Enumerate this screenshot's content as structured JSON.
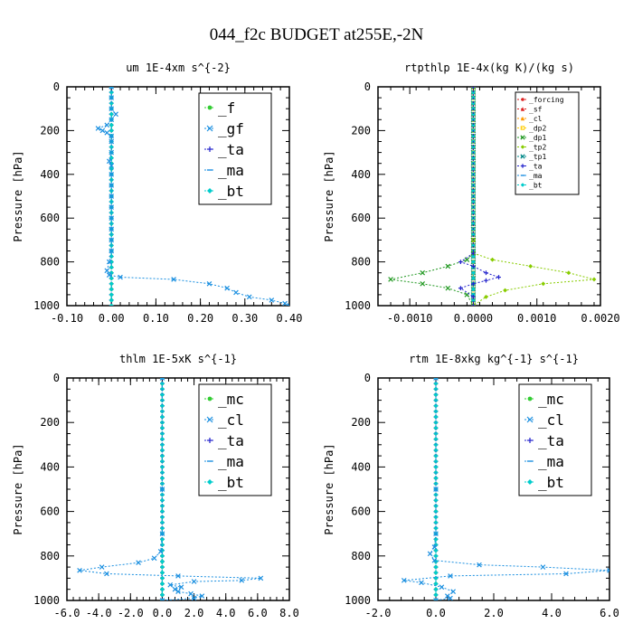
{
  "figure_title": "044_f2c  BUDGET at255E,-2N",
  "colors": {
    "green": "#33cc33",
    "blue": "#1a8fe0",
    "darkblue": "#2222cc",
    "red": "#dd2222",
    "orange": "#ff9900",
    "yellow": "#ffcc00",
    "darkgreen": "#229922",
    "olive": "#88cc00",
    "teal": "#008888",
    "cyan": "#00cccc"
  },
  "chart_data": [
    {
      "type": "line",
      "title": "um  1E-4xm s^{-2}",
      "ylabel": "Pressure [hPa]",
      "ylim": [
        1000,
        0
      ],
      "xlim": [
        -0.1,
        0.4
      ],
      "xticks": [
        -0.1,
        0.0,
        0.1,
        0.2,
        0.3,
        0.4
      ],
      "xtick_labels": [
        "-0.10",
        "0.00",
        "0.10",
        "0.20",
        "0.30",
        "0.40"
      ],
      "yticks": [
        0,
        200,
        400,
        600,
        800,
        1000
      ],
      "legend": {
        "placement": "top-right",
        "size": "big"
      },
      "series": [
        {
          "name": "_f",
          "color": "#33cc33",
          "marker": "circle",
          "gen": "zero"
        },
        {
          "name": "_gf",
          "color": "#1a8fe0",
          "marker": "x",
          "points": [
            [
              0,
              0
            ],
            [
              0,
              50
            ],
            [
              0,
              100
            ],
            [
              0.01,
              125
            ],
            [
              0,
              150
            ],
            [
              -0.01,
              175
            ],
            [
              -0.03,
              190
            ],
            [
              -0.02,
              200
            ],
            [
              -0.01,
              210
            ],
            [
              0,
              225
            ],
            [
              0,
              250
            ],
            [
              0,
              300
            ],
            [
              -0.005,
              340
            ],
            [
              0,
              360
            ],
            [
              0,
              400
            ],
            [
              0,
              450
            ],
            [
              0,
              500
            ],
            [
              0,
              550
            ],
            [
              0,
              600
            ],
            [
              0,
              650
            ],
            [
              0,
              700
            ],
            [
              0,
              750
            ],
            [
              -0.005,
              800
            ],
            [
              -0.01,
              840
            ],
            [
              -0.005,
              860
            ],
            [
              0.02,
              870
            ],
            [
              0.14,
              880
            ],
            [
              0.22,
              900
            ],
            [
              0.26,
              920
            ],
            [
              0.28,
              940
            ],
            [
              0.31,
              960
            ],
            [
              0.36,
              975
            ],
            [
              0.39,
              990
            ],
            [
              0.4,
              1000
            ]
          ]
        },
        {
          "name": "_ta",
          "color": "#2222cc",
          "marker": "plus",
          "gen": "zero"
        },
        {
          "name": "_ma",
          "color": "#1a8fe0",
          "marker": "dash",
          "gen": "zero"
        },
        {
          "name": "_bt",
          "color": "#00cccc",
          "marker": "diamond",
          "gen": "zero"
        }
      ]
    },
    {
      "type": "line",
      "title": "rtpthlp  1E-4x(kg K)/(kg s)",
      "ylabel": "Pressure [hPa]",
      "ylim": [
        1000,
        0
      ],
      "xlim": [
        -0.0015,
        0.002
      ],
      "xticks": [
        -0.001,
        0.0,
        0.001,
        0.002
      ],
      "xtick_labels": [
        "-0.0010",
        "0.0000",
        "0.0010",
        "0.0020"
      ],
      "yticks": [
        0,
        200,
        400,
        600,
        800,
        1000
      ],
      "legend": {
        "placement": "top-right",
        "size": "small"
      },
      "series": [
        {
          "name": "_forcing",
          "color": "#dd2222",
          "marker": "circle",
          "gen": "zero"
        },
        {
          "name": "_sf",
          "color": "#dd2222",
          "marker": "triangle",
          "gen": "zero"
        },
        {
          "name": "_cl",
          "color": "#ff9900",
          "marker": "triangle",
          "gen": "zero"
        },
        {
          "name": "_dp2",
          "color": "#ffcc00",
          "marker": "square",
          "gen": "zero"
        },
        {
          "name": "_dp1",
          "color": "#229922",
          "marker": "x",
          "points": [
            [
              0,
              0
            ],
            [
              0,
              700
            ],
            [
              0,
              760
            ],
            [
              -0.0001,
              790
            ],
            [
              -0.0004,
              820
            ],
            [
              -0.0008,
              850
            ],
            [
              -0.0013,
              880
            ],
            [
              -0.0008,
              900
            ],
            [
              -0.0004,
              920
            ],
            [
              -0.0001,
              950
            ],
            [
              0,
              1000
            ]
          ]
        },
        {
          "name": "_tp2",
          "color": "#88cc00",
          "marker": "diamond",
          "points": [
            [
              0,
              0
            ],
            [
              0,
              700
            ],
            [
              0,
              760
            ],
            [
              0.0003,
              790
            ],
            [
              0.0009,
              820
            ],
            [
              0.0015,
              850
            ],
            [
              0.0019,
              880
            ],
            [
              0.0011,
              900
            ],
            [
              0.0005,
              930
            ],
            [
              0.0002,
              960
            ],
            [
              0,
              1000
            ]
          ]
        },
        {
          "name": "_tp1",
          "color": "#008888",
          "marker": "x",
          "gen": "zero"
        },
        {
          "name": "_ta",
          "color": "#2222cc",
          "marker": "plus",
          "points": [
            [
              0,
              0
            ],
            [
              0,
              760
            ],
            [
              -0.0002,
              800
            ],
            [
              0,
              820
            ],
            [
              0.0002,
              850
            ],
            [
              0.0004,
              870
            ],
            [
              0.0002,
              885
            ],
            [
              0,
              900
            ],
            [
              -0.0002,
              920
            ],
            [
              0,
              960
            ],
            [
              0,
              1000
            ]
          ]
        },
        {
          "name": "_ma",
          "color": "#1a8fe0",
          "marker": "dash",
          "gen": "zero"
        },
        {
          "name": "_bt",
          "color": "#00cccc",
          "marker": "diamond",
          "gen": "zero"
        }
      ]
    },
    {
      "type": "line",
      "title": "thlm  1E-5xK s^{-1}",
      "ylabel": "Pressure [hPa]",
      "ylim": [
        1000,
        0
      ],
      "xlim": [
        -6,
        8
      ],
      "xticks": [
        -6,
        -4,
        -2,
        0,
        2,
        4,
        6,
        8
      ],
      "xtick_labels": [
        "-6.0",
        "-4.0",
        "-2.0",
        "0.0",
        "2.0",
        "4.0",
        "6.0",
        "8.0"
      ],
      "yticks": [
        0,
        200,
        400,
        600,
        800,
        1000
      ],
      "legend": {
        "placement": "top-right",
        "size": "big"
      },
      "series": [
        {
          "name": "_mc",
          "color": "#33cc33",
          "marker": "circle",
          "gen": "zero"
        },
        {
          "name": "_cl",
          "color": "#1a8fe0",
          "marker": "x",
          "points": [
            [
              0,
              0
            ],
            [
              0,
              500
            ],
            [
              0,
              700
            ],
            [
              -0.1,
              780
            ],
            [
              -0.5,
              810
            ],
            [
              -1.5,
              830
            ],
            [
              -3.8,
              850
            ],
            [
              -5.2,
              865
            ],
            [
              -3.5,
              880
            ],
            [
              1,
              890
            ],
            [
              6.2,
              900
            ],
            [
              5,
              910
            ],
            [
              2,
              915
            ],
            [
              0.5,
              930
            ],
            [
              1.2,
              940
            ],
            [
              0.8,
              950
            ],
            [
              1,
              960
            ],
            [
              1.8,
              970
            ],
            [
              2.5,
              980
            ],
            [
              2,
              990
            ],
            [
              0,
              1000
            ]
          ]
        },
        {
          "name": "_ta",
          "color": "#2222cc",
          "marker": "plus",
          "gen": "zero"
        },
        {
          "name": "_ma",
          "color": "#1a8fe0",
          "marker": "dash",
          "gen": "zero"
        },
        {
          "name": "_bt",
          "color": "#00cccc",
          "marker": "diamond",
          "gen": "zero"
        }
      ]
    },
    {
      "type": "line",
      "title": "rtm  1E-8xkg kg^{-1} s^{-1}",
      "ylabel": "Pressure [hPa]",
      "ylim": [
        1000,
        0
      ],
      "xlim": [
        -2,
        6
      ],
      "xticks": [
        -2,
        0,
        2,
        4,
        6
      ],
      "xtick_labels": [
        "-2.0",
        "0.0",
        "2.0",
        "4.0",
        "6.0"
      ],
      "yticks": [
        0,
        200,
        400,
        600,
        800,
        1000
      ],
      "legend": {
        "placement": "top-right",
        "size": "big"
      },
      "series": [
        {
          "name": "_mc",
          "color": "#33cc33",
          "marker": "circle",
          "gen": "zero"
        },
        {
          "name": "_cl",
          "color": "#1a8fe0",
          "marker": "x",
          "points": [
            [
              0,
              0
            ],
            [
              0,
              500
            ],
            [
              0,
              700
            ],
            [
              -0.05,
              760
            ],
            [
              -0.2,
              790
            ],
            [
              -0.05,
              820
            ],
            [
              1.5,
              840
            ],
            [
              3.7,
              850
            ],
            [
              6,
              865
            ],
            [
              4.5,
              880
            ],
            [
              0.5,
              890
            ],
            [
              -1.1,
              910
            ],
            [
              -0.5,
              920
            ],
            [
              0.2,
              940
            ],
            [
              0.6,
              960
            ],
            [
              0.4,
              980
            ],
            [
              0.5,
              990
            ],
            [
              0,
              1000
            ]
          ]
        },
        {
          "name": "_ta",
          "color": "#2222cc",
          "marker": "plus",
          "gen": "zero"
        },
        {
          "name": "_ma",
          "color": "#1a8fe0",
          "marker": "dash",
          "gen": "zero"
        },
        {
          "name": "_bt",
          "color": "#00cccc",
          "marker": "diamond",
          "gen": "zero"
        }
      ]
    }
  ]
}
